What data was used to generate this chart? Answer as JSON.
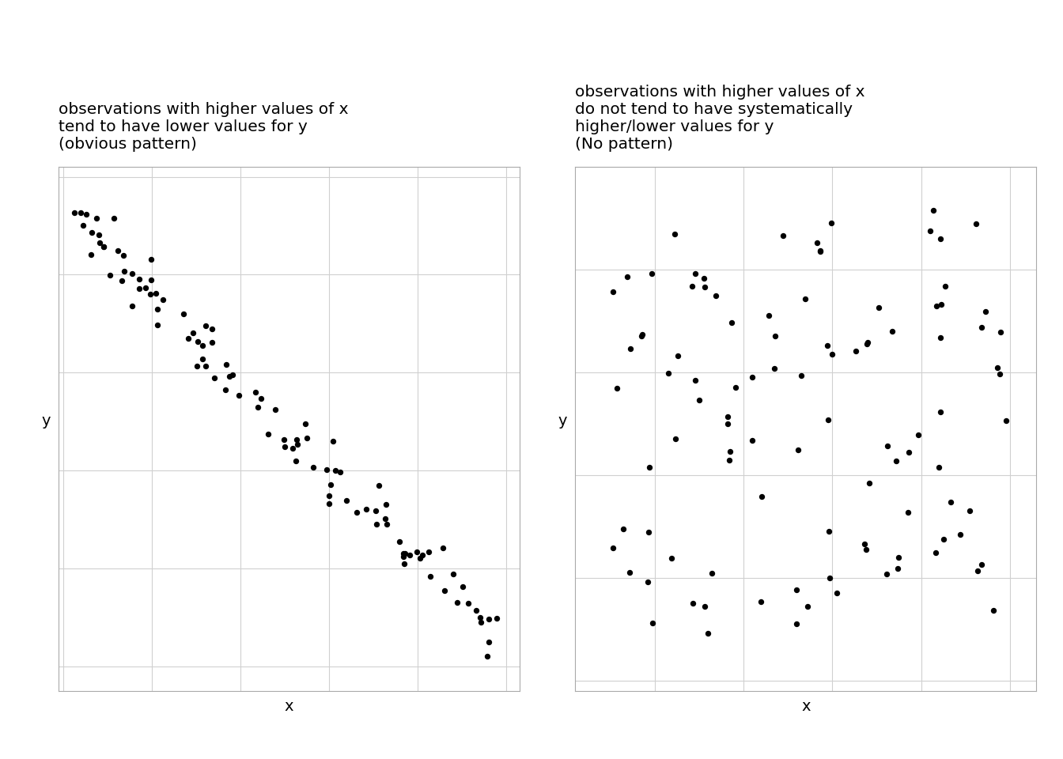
{
  "title1": "observations with higher values of x\ntend to have lower values for y\n(obvious pattern)",
  "title2": "observations with higher values of x\ndo not tend to have systematically\nhigher/lower values for y\n(No pattern)",
  "xlabel": "x",
  "ylabel": "y",
  "background_color": "#ffffff",
  "dot_color": "#000000",
  "dot_size": 28,
  "title_fontsize": 14.5,
  "axis_label_fontsize": 14,
  "grid_color": "#d0d0d0",
  "seed1": 42,
  "seed2": 99,
  "n_points": 100
}
